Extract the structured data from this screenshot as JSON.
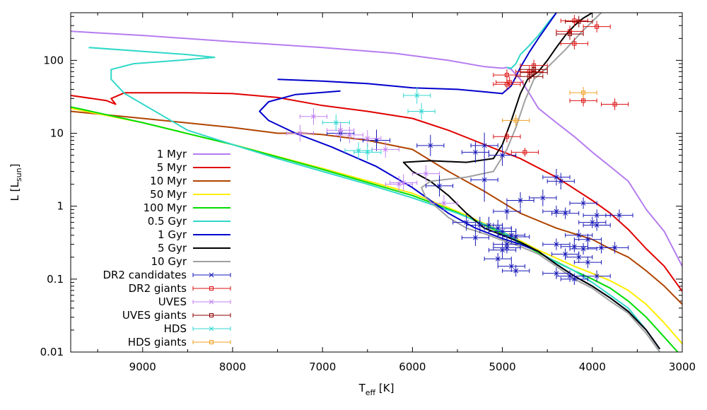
{
  "chart_data": {
    "type": "line",
    "title": "",
    "xlabel_main": "T",
    "xlabel_sub": "eff",
    "xlabel_unit": " [K]",
    "ylabel_main": "L [L",
    "ylabel_sub": "sun",
    "ylabel_end": "]",
    "xlim": [
      9800,
      3000
    ],
    "ylim": [
      0.01,
      450
    ],
    "yscale": "log",
    "x_ticks": [
      {
        "value": 9000,
        "label": "9000"
      },
      {
        "value": 8000,
        "label": "8000"
      },
      {
        "value": 7000,
        "label": "7000"
      },
      {
        "value": 6000,
        "label": "6000"
      },
      {
        "value": 5000,
        "label": "5000"
      },
      {
        "value": 4000,
        "label": "4000"
      },
      {
        "value": 3000,
        "label": "3000"
      }
    ],
    "y_ticks": [
      {
        "value": 0.01,
        "label": "0.01"
      },
      {
        "value": 0.1,
        "label": "0.1"
      },
      {
        "value": 1,
        "label": "1"
      },
      {
        "value": 10,
        "label": "10"
      },
      {
        "value": 100,
        "label": "100"
      }
    ],
    "legend_position": "left-middle",
    "series": [
      {
        "name": "1 Myr",
        "color": "#b57cf0",
        "kind": "line",
        "x": [
          9800,
          9000,
          8000,
          7000,
          6200,
          5600,
          5200,
          5000,
          4950,
          4900,
          4800,
          4700,
          4600,
          4400,
          4200,
          4000,
          3800,
          3600,
          3400,
          3200,
          3000
        ],
        "y": [
          250,
          220,
          180,
          150,
          125,
          100,
          82,
          78,
          80,
          75,
          55,
          35,
          22,
          14,
          9,
          5.5,
          3.5,
          2.2,
          0.9,
          0.45,
          0.15
        ]
      },
      {
        "name": "5 Myr",
        "color": "#e00000",
        "kind": "line",
        "x": [
          9800,
          9400,
          9300,
          9350,
          9200,
          8500,
          8000,
          7500,
          7000,
          6500,
          6000,
          5600,
          5200,
          4800,
          4400,
          4000,
          3800,
          3600,
          3400,
          3200,
          3000
        ],
        "y": [
          33,
          28,
          25,
          30,
          36,
          36,
          35,
          31,
          24,
          20,
          16,
          11,
          7,
          4.5,
          2.5,
          1.2,
          0.8,
          0.48,
          0.26,
          0.15,
          0.068
        ]
      },
      {
        "name": "10 Myr",
        "color": "#b04400",
        "kind": "line",
        "x": [
          9800,
          9000,
          8000,
          7500,
          7200,
          7000,
          6500,
          6000,
          5600,
          5200,
          4800,
          4400,
          4000,
          3800,
          3600,
          3400,
          3200,
          3000
        ],
        "y": [
          20,
          16,
          12,
          10,
          10,
          9.6,
          8,
          6,
          3,
          1.6,
          0.8,
          0.5,
          0.35,
          0.26,
          0.2,
          0.13,
          0.08,
          0.045
        ]
      },
      {
        "name": "50 Myr",
        "color": "#ffee00",
        "kind": "line",
        "x": [
          9800,
          9000,
          8000,
          7000,
          6000,
          5500,
          5000,
          4600,
          4200,
          4000,
          3800,
          3600,
          3400,
          3200,
          3000
        ],
        "y": [
          22,
          14,
          7,
          3.3,
          1.5,
          0.85,
          0.45,
          0.25,
          0.15,
          0.12,
          0.095,
          0.07,
          0.045,
          0.025,
          0.013
        ]
      },
      {
        "name": "100 Myr",
        "color": "#00dd00",
        "kind": "line",
        "x": [
          9800,
          9000,
          8000,
          7000,
          6000,
          5500,
          5000,
          4600,
          4200,
          4000,
          3800,
          3600,
          3400,
          3200,
          3050
        ],
        "y": [
          23,
          14,
          7,
          3.2,
          1.4,
          0.82,
          0.42,
          0.23,
          0.13,
          0.1,
          0.075,
          0.05,
          0.03,
          0.016,
          0.01
        ]
      },
      {
        "name": "0.5 Gyr",
        "color": "#30d8c8",
        "kind": "line",
        "x": [
          9600,
          8500,
          8200,
          8600,
          9100,
          9350,
          9350,
          9200,
          8500,
          8000,
          7500,
          7000,
          6500,
          6000,
          5500,
          5000,
          4800,
          4700,
          4400,
          4200,
          4000,
          3800,
          3600,
          3400,
          3250
        ],
        "y": [
          150,
          120,
          110,
          100,
          90,
          75,
          55,
          35,
          11,
          7,
          4.5,
          3,
          2,
          1.3,
          0.8,
          0.45,
          0.32,
          0.28,
          0.17,
          0.13,
          0.09,
          0.06,
          0.04,
          0.02,
          0.011
        ],
        "x2": [
          4950,
          4900,
          4850,
          4800,
          4700,
          4600,
          4500,
          4400
        ],
        "y2": [
          80,
          78,
          90,
          120,
          160,
          220,
          320,
          450
        ]
      },
      {
        "name": "1 Gyr",
        "color": "#0000cc",
        "kind": "line",
        "x": [
          7500,
          7000,
          6500,
          6000,
          5500,
          5200,
          5000,
          4900,
          4800,
          4700,
          4600,
          4500,
          4400
        ],
        "y": [
          55,
          52,
          48,
          42,
          40,
          37,
          35,
          45,
          80,
          130,
          200,
          300,
          450
        ],
        "x3": [
          6800,
          7300,
          7600,
          7700,
          7600,
          7300,
          6900,
          6400,
          6000,
          5600,
          5300,
          5000,
          4800,
          4600,
          4400,
          4200,
          4000,
          3800,
          3600,
          3400,
          3250
        ],
        "y3": [
          38,
          34,
          27,
          20,
          15,
          10,
          6.5,
          3.5,
          1.8,
          0.8,
          0.5,
          0.36,
          0.3,
          0.24,
          0.16,
          0.11,
          0.08,
          0.055,
          0.036,
          0.02,
          0.011
        ]
      },
      {
        "name": "5 Gyr",
        "color": "#000000",
        "kind": "line",
        "x": [
          4720,
          4800,
          4900,
          5000,
          5100,
          5400,
          5800,
          6100,
          6000,
          5800,
          5600,
          5400,
          5200,
          5000,
          4800,
          4600,
          4400,
          4200,
          4000,
          3800,
          3600,
          3400,
          3250
        ],
        "y": [
          55,
          35,
          15,
          7,
          4.5,
          4,
          4.2,
          4,
          3,
          2.2,
          1.4,
          0.8,
          0.5,
          0.4,
          0.32,
          0.24,
          0.16,
          0.11,
          0.08,
          0.055,
          0.036,
          0.02,
          0.011
        ],
        "x2": [
          4720,
          4600,
          4500,
          4400,
          4300,
          4200,
          4100,
          4000
        ],
        "y2": [
          55,
          70,
          100,
          150,
          220,
          300,
          380,
          450
        ]
      },
      {
        "name": "10 Gyr",
        "color": "#a0a0a0",
        "kind": "line",
        "x": [
          4650,
          4750,
          4850,
          4950,
          5100,
          5400,
          5800,
          5900,
          5850,
          5700,
          5600,
          5400,
          5200,
          5000,
          4800,
          4600,
          4400,
          4200,
          4000,
          3800,
          3600,
          3400,
          3250
        ],
        "y": [
          55,
          28,
          12,
          6,
          3,
          2.5,
          2.2,
          1.8,
          1.3,
          0.9,
          0.7,
          0.5,
          0.42,
          0.34,
          0.28,
          0.22,
          0.15,
          0.1,
          0.075,
          0.05,
          0.034,
          0.018,
          0.01
        ],
        "x2": [
          4650,
          4500,
          4300,
          4100,
          3900
        ],
        "y2": [
          55,
          80,
          140,
          260,
          450
        ]
      },
      {
        "name": "DR2 candidates",
        "color": "#1818b8",
        "kind": "errorbar",
        "points": [
          [
            6800,
            10,
            0.3
          ],
          [
            6400,
            8,
            0.4
          ],
          [
            5800,
            6.8,
            0.4
          ],
          [
            5200,
            6.8,
            0.5
          ],
          [
            5300,
            5.5,
            0.4
          ],
          [
            5000,
            5,
            0.4
          ],
          [
            5700,
            1.9,
            0.4
          ],
          [
            5200,
            2.3,
            1
          ],
          [
            4800,
            1.2,
            0.3
          ],
          [
            4400,
            2.5,
            0.3
          ],
          [
            4350,
            2.2,
            0.3
          ],
          [
            4550,
            1.3,
            0.3
          ],
          [
            4100,
            1.1,
            0.2
          ],
          [
            4400,
            0.85,
            0.2
          ],
          [
            4300,
            0.8,
            0.2
          ],
          [
            3950,
            0.75,
            0.2
          ],
          [
            3700,
            0.75,
            0.2
          ],
          [
            4950,
            0.85,
            0.3
          ],
          [
            5400,
            0.6,
            0.3
          ],
          [
            5250,
            0.55,
            0.3
          ],
          [
            5150,
            0.55,
            0.3
          ],
          [
            5050,
            0.5,
            0.3
          ],
          [
            5000,
            0.45,
            0.3
          ],
          [
            4900,
            0.4,
            0.3
          ],
          [
            4850,
            0.38,
            0.3
          ],
          [
            5300,
            0.37,
            0.3
          ],
          [
            4950,
            0.3,
            0.3
          ],
          [
            4950,
            0.27,
            0.2
          ],
          [
            5000,
            0.25,
            0.3
          ],
          [
            4400,
            0.3,
            0.2
          ],
          [
            4200,
            0.28,
            0.2
          ],
          [
            4100,
            0.26,
            0.2
          ],
          [
            3900,
            0.27,
            0.2
          ],
          [
            4000,
            0.6,
            0.2
          ],
          [
            3950,
            0.55,
            0.2
          ],
          [
            4150,
            0.4,
            0.2
          ],
          [
            4050,
            0.35,
            0.2
          ],
          [
            3750,
            0.27,
            0.2
          ],
          [
            4300,
            0.22,
            0.2
          ],
          [
            4150,
            0.2,
            0.2
          ],
          [
            4050,
            0.17,
            0.2
          ],
          [
            5050,
            0.19,
            0.2
          ],
          [
            4900,
            0.15,
            0.2
          ],
          [
            4850,
            0.13,
            0.2
          ],
          [
            4400,
            0.12,
            0.2
          ],
          [
            4250,
            0.11,
            0.2
          ],
          [
            4200,
            0.1,
            0.2
          ],
          [
            3950,
            0.11,
            0.2
          ]
        ]
      },
      {
        "name": "DR2 giants",
        "color": "#dd1010",
        "kind": "errorbar",
        "points": [
          [
            4750,
            5.5,
            0.15
          ],
          [
            4950,
            9,
            0.2
          ],
          [
            4950,
            47,
            0.2
          ],
          [
            4920,
            50,
            0.2
          ],
          [
            4950,
            63,
            0.2
          ],
          [
            4700,
            70,
            0.2
          ],
          [
            4650,
            85,
            0.2
          ],
          [
            4200,
            170,
            0.2
          ],
          [
            4250,
            250,
            0.2
          ],
          [
            4200,
            350,
            0.2
          ],
          [
            3950,
            290,
            0.2
          ],
          [
            3750,
            25,
            0.2
          ],
          [
            4100,
            28,
            0.2
          ]
        ]
      },
      {
        "name": "UVES",
        "color": "#c080f0",
        "kind": "errorbar",
        "points": [
          [
            7250,
            10,
            0.3
          ],
          [
            7100,
            17,
            0.3
          ],
          [
            6800,
            11,
            0.3
          ],
          [
            6700,
            9.5,
            0.3
          ],
          [
            6500,
            8.5,
            0.3
          ],
          [
            6300,
            6,
            0.3
          ],
          [
            6100,
            2.1,
            0.3
          ],
          [
            6150,
            2,
            0.3
          ],
          [
            5850,
            2.8,
            0.3
          ],
          [
            5650,
            1.1,
            0.3
          ]
        ]
      },
      {
        "name": "UVES giants",
        "color": "#8b0000",
        "kind": "errorbar",
        "points": [
          [
            4650,
            68,
            0.2
          ],
          [
            4650,
            75,
            0.2
          ],
          [
            4700,
            60,
            0.2
          ],
          [
            4250,
            230,
            0.2
          ],
          [
            4150,
            340,
            0.2
          ]
        ]
      },
      {
        "name": "HDS",
        "color": "#30d8d0",
        "kind": "errorbar",
        "points": [
          [
            5950,
            33,
            0.3
          ],
          [
            5900,
            20,
            0.3
          ],
          [
            6850,
            14,
            0.3
          ],
          [
            6600,
            5.8,
            0.3
          ],
          [
            6500,
            5.5,
            0.3
          ]
        ]
      },
      {
        "name": "HDS giants",
        "color": "#f0a020",
        "kind": "errorbar",
        "points": [
          [
            4850,
            15,
            0.2
          ],
          [
            4100,
            36,
            0.2
          ]
        ]
      }
    ]
  }
}
